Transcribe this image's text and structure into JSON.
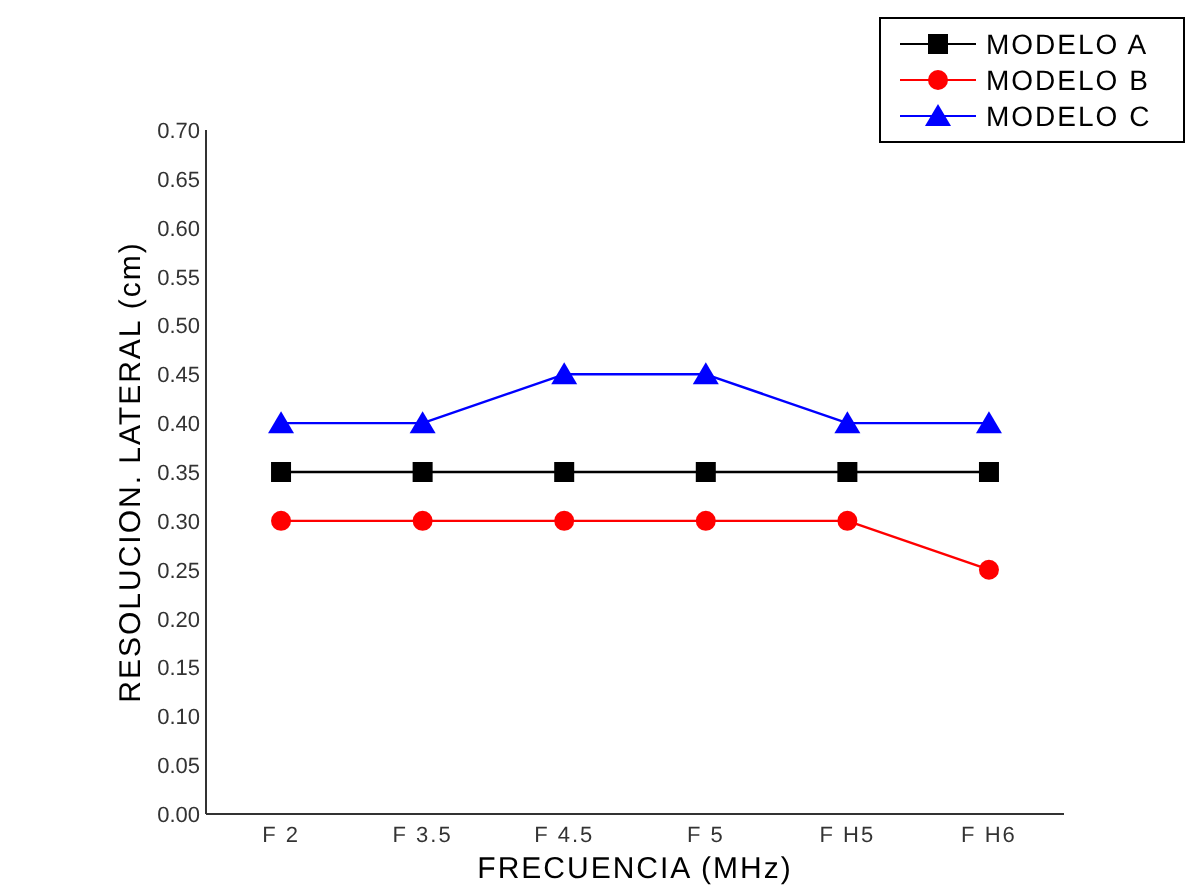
{
  "chart_data": {
    "type": "line",
    "xlabel": "FRECUENCIA (MHz)",
    "ylabel": "RESOLUCION. LATERAL  (cm)",
    "categories": [
      "F 2",
      "F 3.5",
      "F 4.5",
      "F 5",
      "F H5",
      "F H6"
    ],
    "series": [
      {
        "name": "MODELO A",
        "color": "#000000",
        "marker": "square",
        "values": [
          0.35,
          0.35,
          0.35,
          0.35,
          0.35,
          0.35
        ]
      },
      {
        "name": "MODELO B",
        "color": "#ff0000",
        "marker": "circle",
        "values": [
          0.3,
          0.3,
          0.3,
          0.3,
          0.3,
          0.25
        ]
      },
      {
        "name": "MODELO C",
        "color": "#0000ff",
        "marker": "triangle",
        "values": [
          0.4,
          0.4,
          0.45,
          0.45,
          0.4,
          0.4
        ]
      }
    ],
    "ylim": [
      0,
      0.7
    ],
    "yticks": [
      {
        "value": 0,
        "label": "0.00"
      },
      {
        "value": 0.05,
        "label": "0.05"
      },
      {
        "value": 0.1,
        "label": "0.10"
      },
      {
        "value": 0.15,
        "label": "0.15"
      },
      {
        "value": 0.2,
        "label": "0.20"
      },
      {
        "value": 0.25,
        "label": "0.25"
      },
      {
        "value": 0.3,
        "label": "0.30"
      },
      {
        "value": 0.35,
        "label": "0.35"
      },
      {
        "value": 0.4,
        "label": "0.40"
      },
      {
        "value": 0.45,
        "label": "0.45"
      },
      {
        "value": 0.5,
        "label": "0.50"
      },
      {
        "value": 0.55,
        "label": "0.55"
      },
      {
        "value": 0.6,
        "label": "0.60"
      },
      {
        "value": 0.65,
        "label": "0.65"
      },
      {
        "value": 0.7,
        "label": "0.70"
      }
    ],
    "grid": false,
    "legend": "top right",
    "line_style": "solid"
  }
}
